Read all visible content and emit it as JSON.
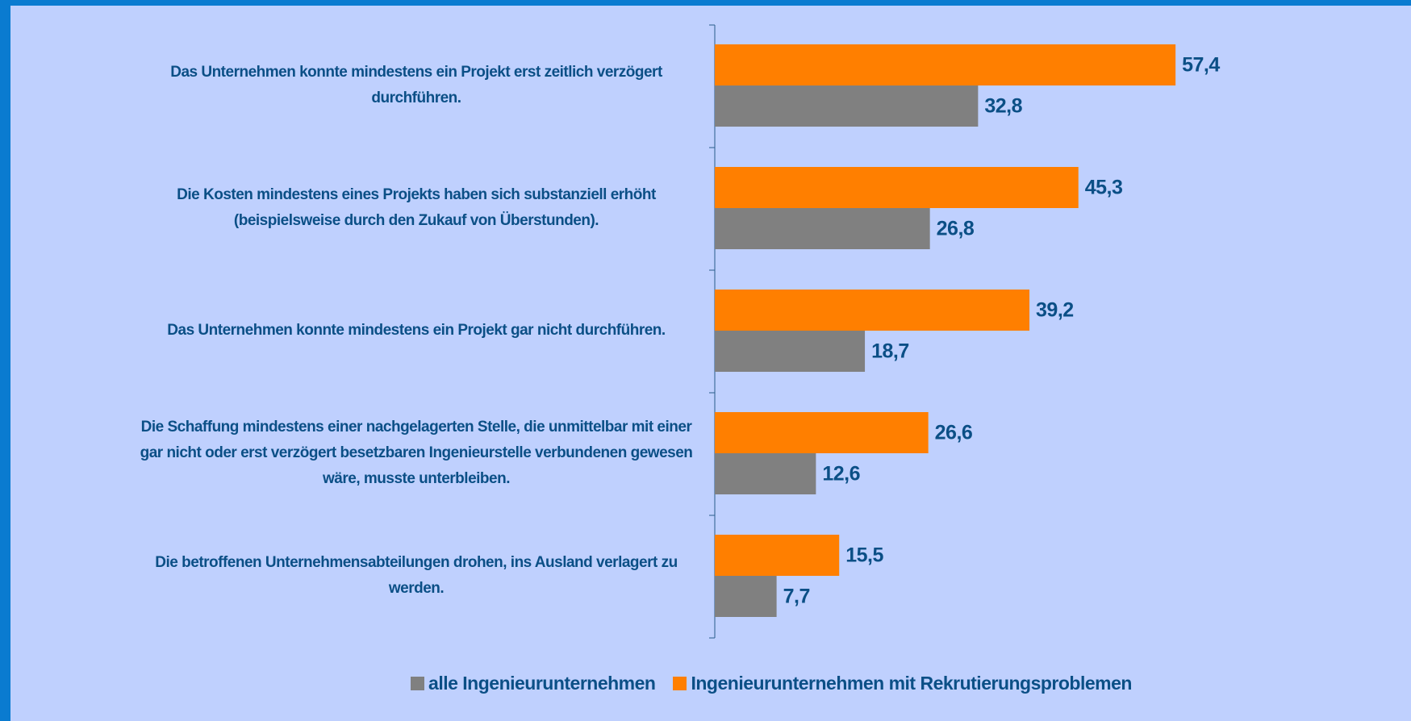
{
  "chart_data": {
    "type": "hbar",
    "categories": [
      "Das Unternehmen konnte mindestens ein Projekt erst zeitlich verzögert durchführen.",
      "Die Kosten mindestens eines Projekts haben sich substanziell erhöht (beispielsweise durch den Zukauf von Überstunden).",
      "Das Unternehmen konnte mindestens ein Projekt gar nicht durchführen.",
      "Die Schaffung mindestens einer nachgelagerten Stelle, die unmittelbar mit einer gar nicht oder erst verzögert besetzbaren Ingenieurstelle verbundenen gewesen wäre, musste unterbleiben.",
      "Die betroffenen Unternehmensabteilungen drohen, ins Ausland verlagert zu werden."
    ],
    "series": [
      {
        "name": "alle Ingenieurunternehmen",
        "color": "#808080",
        "values": [
          32.8,
          26.8,
          18.7,
          12.6,
          7.7
        ],
        "value_labels": [
          "32,8",
          "26,8",
          "18,7",
          "12,6",
          "7,7"
        ]
      },
      {
        "name": "Ingenieurunternehmen mit Rekrutierungsproblemen",
        "color": "#ff7f00",
        "values": [
          57.4,
          45.3,
          39.2,
          26.6,
          15.5
        ],
        "value_labels": [
          "57,4",
          "45,3",
          "39,2",
          "26,6",
          "15,5"
        ]
      }
    ],
    "xlim": [
      0,
      80
    ],
    "legend": "bottom"
  }
}
